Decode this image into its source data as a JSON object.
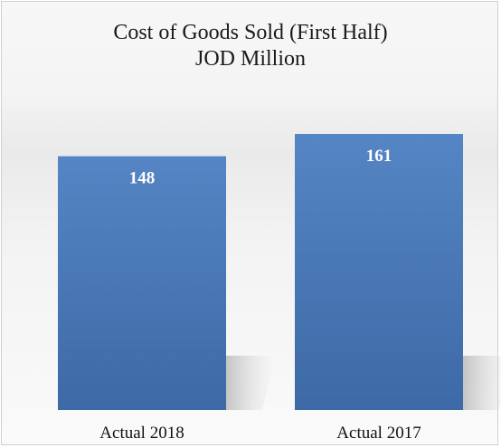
{
  "chart_data": {
    "type": "bar",
    "title": "Cost of Goods Sold (First Half)",
    "subtitle": "JOD Million",
    "categories": [
      "Actual 2018",
      "Actual 2017"
    ],
    "values": [
      148,
      161
    ],
    "data_labels": [
      "148",
      "161"
    ],
    "xlabel": "",
    "ylabel": "",
    "ylim": [
      0,
      161
    ],
    "grid": false,
    "legend": "none",
    "bar_color": "#4f7fbd"
  }
}
